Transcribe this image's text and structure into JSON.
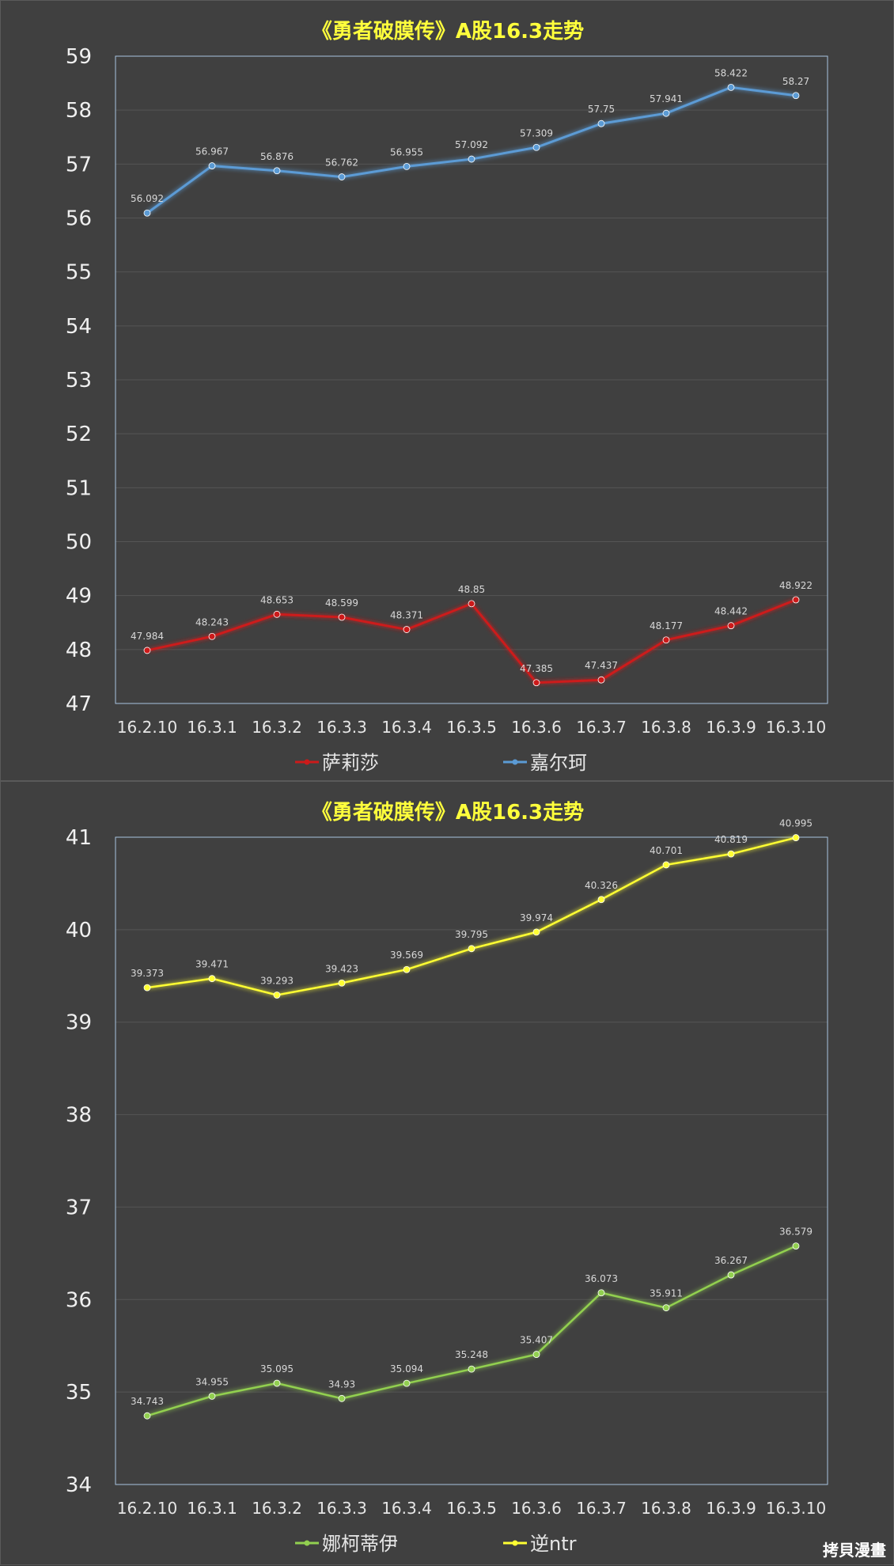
{
  "watermark": "拷貝漫畫",
  "chart_data": [
    {
      "type": "line",
      "title": "《勇者破膜传》A股16.3走势",
      "categories": [
        "16.2.10",
        "16.3.1",
        "16.3.2",
        "16.3.3",
        "16.3.4",
        "16.3.5",
        "16.3.6",
        "16.3.7",
        "16.3.8",
        "16.3.9",
        "16.3.10"
      ],
      "ylim": [
        47,
        59
      ],
      "yticks": [
        47,
        48,
        49,
        50,
        51,
        52,
        53,
        54,
        55,
        56,
        57,
        58,
        59
      ],
      "grid": true,
      "legend_position": "bottom",
      "series": [
        {
          "name": "萨莉莎",
          "color": "#cc1a1a",
          "values": [
            47.984,
            48.243,
            48.653,
            48.599,
            48.371,
            48.85,
            47.385,
            47.437,
            48.177,
            48.442,
            48.922
          ],
          "labels": [
            "47.984",
            "48.243",
            "48.653",
            "48.599",
            "48.371",
            "48.85",
            "47.385",
            "47.437",
            "48.177",
            "48.442",
            "48.922"
          ]
        },
        {
          "name": "嘉尔珂",
          "color": "#5b9bd5",
          "values": [
            56.092,
            56.967,
            56.876,
            56.762,
            56.955,
            57.092,
            57.309,
            57.75,
            57.941,
            58.422,
            58.27
          ],
          "labels": [
            "56.092",
            "56.967",
            "56.876",
            "56.762",
            "56.955",
            "57.092",
            "57.309",
            "57.75",
            "57.941",
            "58.422",
            "58.27"
          ]
        }
      ]
    },
    {
      "type": "line",
      "title": "《勇者破膜传》A股16.3走势",
      "categories": [
        "16.2.10",
        "16.3.1",
        "16.3.2",
        "16.3.3",
        "16.3.4",
        "16.3.5",
        "16.3.6",
        "16.3.7",
        "16.3.8",
        "16.3.9",
        "16.3.10"
      ],
      "ylim": [
        34,
        41
      ],
      "yticks": [
        34,
        35,
        36,
        37,
        38,
        39,
        40,
        41
      ],
      "grid": true,
      "legend_position": "bottom",
      "series": [
        {
          "name": "娜柯蒂伊",
          "color": "#92d050",
          "values": [
            34.743,
            34.955,
            35.095,
            34.93,
            35.094,
            35.248,
            35.407,
            36.073,
            35.911,
            36.267,
            36.579
          ],
          "labels": [
            "34.743",
            "34.955",
            "35.095",
            "34.93",
            "35.094",
            "35.248",
            "35.407",
            "36.073",
            "35.911",
            "36.267",
            "36.579"
          ]
        },
        {
          "name": "逆ntr",
          "color": "#ffff33",
          "values": [
            39.373,
            39.471,
            39.293,
            39.423,
            39.569,
            39.795,
            39.974,
            40.326,
            40.701,
            40.819,
            40.995
          ],
          "labels": [
            "39.373",
            "39.471",
            "39.293",
            "39.423",
            "39.569",
            "39.795",
            "39.974",
            "40.326",
            "40.701",
            "40.819",
            "40.995"
          ]
        }
      ]
    }
  ]
}
